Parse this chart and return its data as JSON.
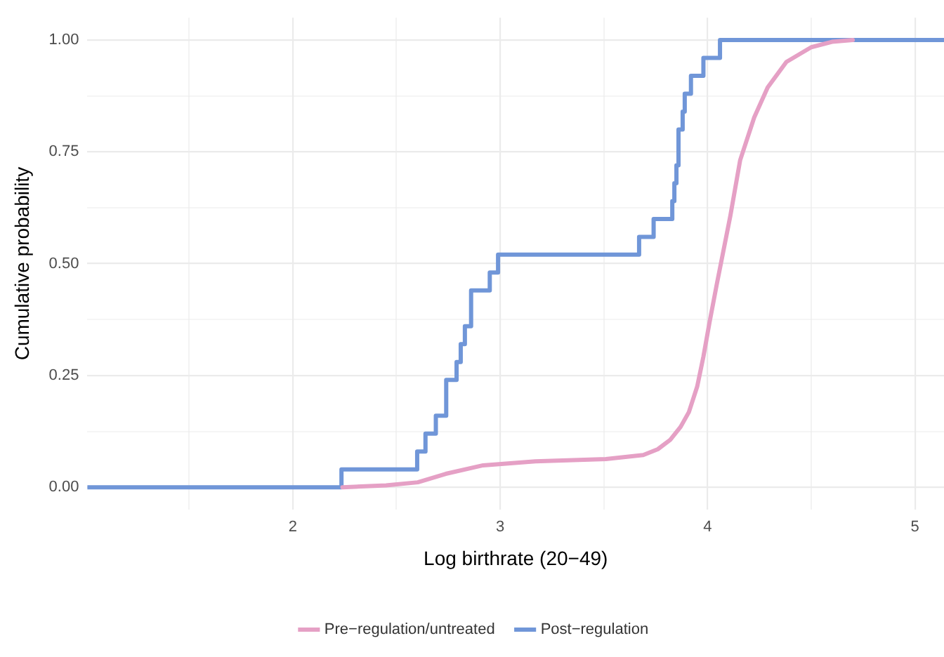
{
  "chart_data": {
    "type": "line",
    "xlabel": "Log birthrate (20−49)",
    "ylabel": "Cumulative probability",
    "xlim": [
      1.01,
      5.14
    ],
    "ylim": [
      -0.05,
      1.05
    ],
    "xticks": [
      {
        "value": 1.5,
        "label": null
      },
      2,
      {
        "value": 2.5,
        "label": null
      },
      3,
      {
        "value": 3.5,
        "label": null
      },
      4,
      {
        "value": 4.5,
        "label": null
      },
      5
    ],
    "yticks": [
      {
        "value": 0,
        "label": "0.00"
      },
      {
        "value": 0.125,
        "label": null
      },
      {
        "value": 0.25,
        "label": "0.25"
      },
      {
        "value": 0.375,
        "label": null
      },
      {
        "value": 0.5,
        "label": "0.50"
      },
      {
        "value": 0.625,
        "label": null
      },
      {
        "value": 0.75,
        "label": "0.75"
      },
      {
        "value": 0.875,
        "label": null
      },
      {
        "value": 1,
        "label": "1.00"
      }
    ],
    "grid": true,
    "legend": "bottom",
    "marker": "none",
    "line_style": "solid",
    "series": [
      {
        "name": "Pre−regulation/untreated",
        "color": "#e5a0c5",
        "x": [
          2.24,
          2.45,
          2.603,
          2.738,
          2.918,
          3.17,
          3.51,
          3.69,
          3.76,
          3.82,
          3.87,
          3.91,
          3.95,
          3.98,
          4.01,
          4.045,
          4.11,
          4.157,
          4.225,
          4.29,
          4.38,
          4.5,
          4.6,
          4.7
        ],
        "values": [
          0,
          0.004,
          0.011,
          0.03,
          0.049,
          0.058,
          0.063,
          0.072,
          0.085,
          0.106,
          0.135,
          0.168,
          0.225,
          0.292,
          0.37,
          0.455,
          0.607,
          0.731,
          0.827,
          0.894,
          0.951,
          0.984,
          0.996,
          1
        ]
      },
      {
        "name": "Post−regulation",
        "type": "step",
        "color": "#7096d8",
        "x": [
          1.01,
          2.235,
          2.6,
          2.64,
          2.69,
          2.74,
          2.79,
          2.81,
          2.83,
          2.86,
          2.95,
          2.99,
          3.67,
          3.74,
          3.83,
          3.84,
          3.85,
          3.86,
          3.88,
          3.89,
          3.92,
          3.98,
          4.06,
          5.14
        ],
        "values": [
          0,
          0.04,
          0.08,
          0.12,
          0.16,
          0.24,
          0.28,
          0.32,
          0.36,
          0.44,
          0.48,
          0.52,
          0.56,
          0.6,
          0.64,
          0.68,
          0.72,
          0.8,
          0.84,
          0.88,
          0.92,
          0.96,
          1,
          1
        ]
      }
    ]
  }
}
